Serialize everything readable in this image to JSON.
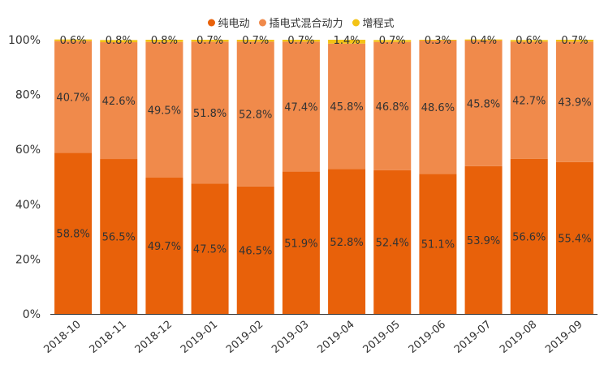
{
  "chart_data": {
    "type": "bar",
    "stacked": true,
    "categories": [
      "2018-10",
      "2018-11",
      "2018-12",
      "2019-01",
      "2019-02",
      "2019-03",
      "2019-04",
      "2019-05",
      "2019-06",
      "2019-07",
      "2019-08",
      "2019-09"
    ],
    "series": [
      {
        "name": "纯电动",
        "color": "#e8610a",
        "values": [
          58.8,
          56.5,
          49.7,
          47.5,
          46.5,
          51.9,
          52.8,
          52.4,
          51.1,
          53.9,
          56.6,
          55.4
        ]
      },
      {
        "name": "插电式混合动力",
        "color": "#f08a4b",
        "values": [
          40.7,
          42.6,
          49.5,
          51.8,
          52.8,
          47.4,
          45.8,
          46.8,
          48.6,
          45.8,
          42.7,
          43.9
        ]
      },
      {
        "name": "增程式",
        "color": "#f3c316",
        "values": [
          0.6,
          0.8,
          0.8,
          0.7,
          0.7,
          0.7,
          1.4,
          0.7,
          0.3,
          0.4,
          0.6,
          0.7
        ]
      }
    ],
    "data_labels": [
      [
        "58.8%",
        "56.5%",
        "49.7%",
        "47.5%",
        "46.5%",
        "51.9%",
        "52.8%",
        "52.4%",
        "51.1%",
        "53.9%",
        "56.6%",
        "55.4%"
      ],
      [
        "40.7%",
        "42.6%",
        "49.5%",
        "51.8%",
        "52.8%",
        "47.4%",
        "45.8%",
        "46.8%",
        "48.6%",
        "45.8%",
        "42.7%",
        "43.9%"
      ],
      [
        "0.6%",
        "0.8%",
        "0.8%",
        "0.7%",
        "0.7%",
        "0.7%",
        "1.4%",
        "0.7%",
        "0.3%",
        "0.4%",
        "0.6%",
        "0.7%"
      ]
    ],
    "y_ticks": [
      "0%",
      "20%",
      "40%",
      "60%",
      "80%",
      "100%"
    ],
    "ylim": [
      0,
      100
    ],
    "legend_position": "top-center",
    "grid": false
  }
}
